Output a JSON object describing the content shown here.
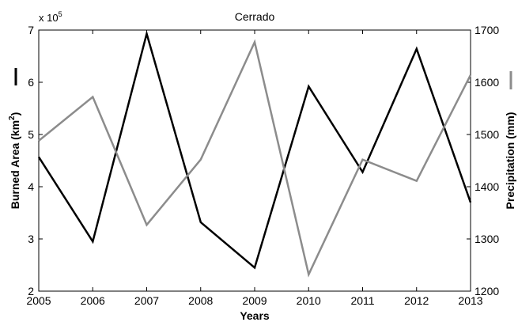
{
  "chart_data": {
    "type": "line",
    "title": "Cerrado",
    "xlabel": "Years",
    "x": [
      2005,
      2006,
      2007,
      2008,
      2009,
      2010,
      2011,
      2012,
      2013
    ],
    "xlim": [
      2005,
      2013
    ],
    "x_ticks": [
      "2005",
      "2006",
      "2007",
      "2008",
      "2009",
      "2010",
      "2011",
      "2012",
      "2013"
    ],
    "y_left": {
      "label_main": "Burned Area (km",
      "label_sup": "2",
      "label_end": ")",
      "ylim": [
        2,
        7
      ],
      "ticks": [
        "2",
        "3",
        "4",
        "5",
        "6",
        "7"
      ],
      "multiplier": "x 10",
      "multiplier_exp": "5"
    },
    "y_right": {
      "label": "Precipitation (mm)",
      "ylim": [
        1200,
        1700
      ],
      "ticks": [
        "1200",
        "1300",
        "1400",
        "1500",
        "1600",
        "1700"
      ]
    },
    "series": [
      {
        "axis": "left",
        "color": "#000000",
        "values": [
          4.57,
          2.95,
          6.93,
          3.32,
          2.45,
          5.92,
          4.28,
          6.64,
          3.7
        ]
      },
      {
        "axis": "right",
        "color": "#8c8c8c",
        "values": [
          1488,
          1572,
          1327,
          1452,
          1677,
          1232,
          1452,
          1411,
          1614
        ]
      }
    ],
    "grid": false,
    "legend": "none"
  }
}
